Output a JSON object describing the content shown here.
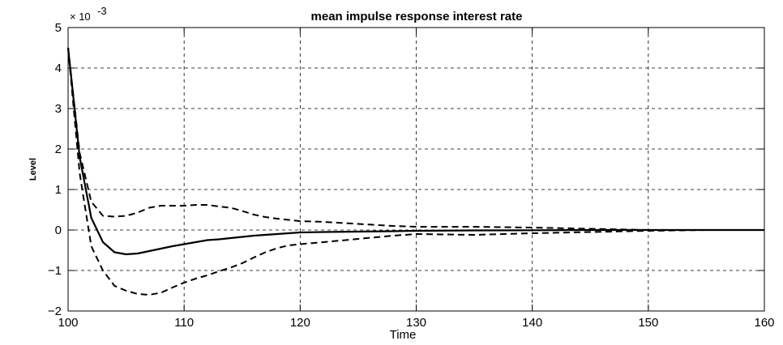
{
  "chart_data": {
    "type": "line",
    "title": "mean impulse response interest rate",
    "xlabel": "Time",
    "ylabel": "Level",
    "y_exponent_base": "× 10",
    "y_exponent_power": "-3",
    "xlim": [
      100,
      160
    ],
    "ylim": [
      -2,
      5
    ],
    "x_ticks": [
      "100",
      "110",
      "120",
      "130",
      "140",
      "150",
      "160"
    ],
    "y_ticks": [
      "-2",
      "-1",
      "0",
      "1",
      "2",
      "3",
      "4",
      "5"
    ],
    "grid": true,
    "x": [
      100,
      101,
      102,
      103,
      104,
      105,
      106,
      107,
      108,
      109,
      110,
      111,
      112,
      113,
      114,
      115,
      116,
      117,
      118,
      119,
      120,
      122,
      125,
      128,
      130,
      135,
      140,
      145,
      150,
      155,
      160
    ],
    "series": [
      {
        "style": "solid",
        "values": [
          4.5,
          1.8,
          0.3,
          -0.3,
          -0.55,
          -0.6,
          -0.58,
          -0.52,
          -0.46,
          -0.4,
          -0.35,
          -0.3,
          -0.25,
          -0.23,
          -0.2,
          -0.17,
          -0.14,
          -0.12,
          -0.1,
          -0.08,
          -0.06,
          -0.05,
          -0.04,
          -0.03,
          -0.02,
          -0.01,
          -0.005,
          0,
          0,
          0,
          0
        ]
      },
      {
        "style": "dashed",
        "values": [
          4.5,
          1.9,
          0.7,
          0.35,
          0.33,
          0.35,
          0.43,
          0.55,
          0.6,
          0.6,
          0.6,
          0.62,
          0.62,
          0.58,
          0.55,
          0.47,
          0.38,
          0.32,
          0.28,
          0.25,
          0.22,
          0.2,
          0.15,
          0.1,
          0.08,
          0.08,
          0.06,
          0.03,
          0,
          0,
          0
        ]
      },
      {
        "style": "dashed",
        "values": [
          4.5,
          1.4,
          -0.4,
          -1.0,
          -1.38,
          -1.5,
          -1.58,
          -1.6,
          -1.55,
          -1.42,
          -1.3,
          -1.2,
          -1.12,
          -1.02,
          -0.93,
          -0.82,
          -0.68,
          -0.55,
          -0.45,
          -0.38,
          -0.35,
          -0.3,
          -0.22,
          -0.14,
          -0.1,
          -0.12,
          -0.08,
          -0.05,
          -0.02,
          0,
          0
        ]
      }
    ]
  }
}
